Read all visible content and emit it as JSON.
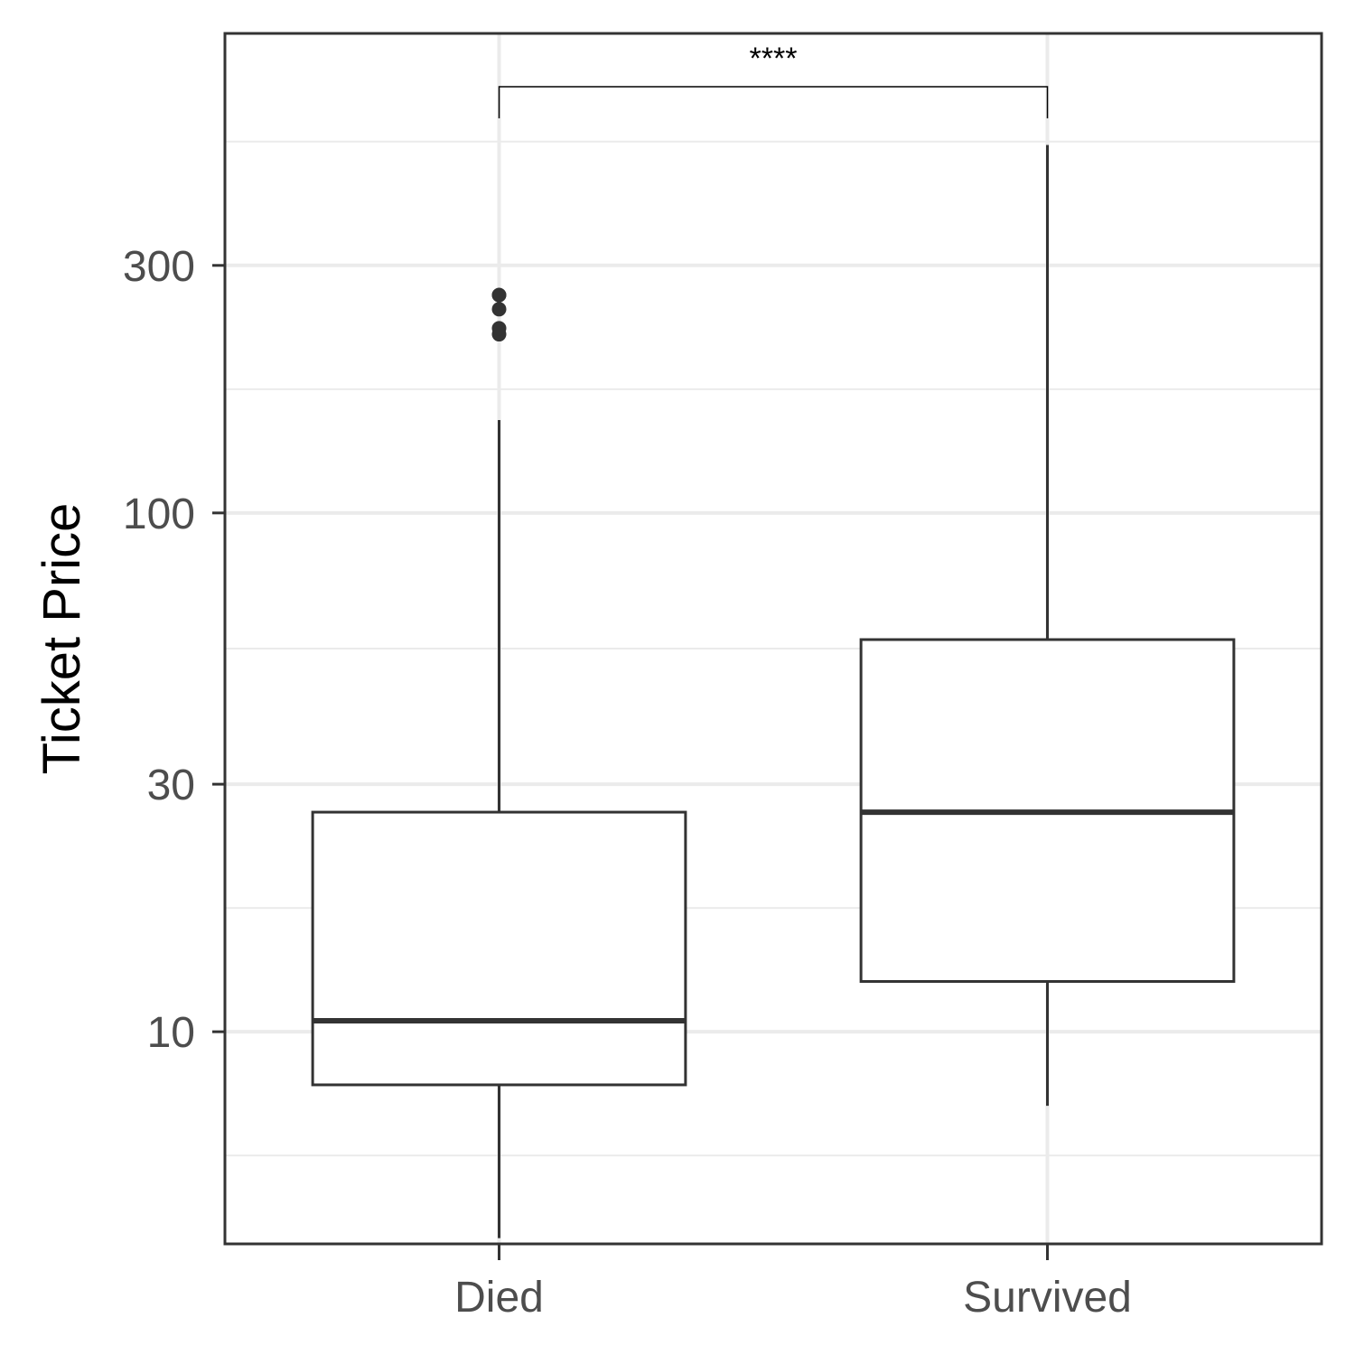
{
  "chart_data": {
    "type": "box",
    "title": "",
    "xlabel": "",
    "ylabel": "Ticket Price",
    "y_scale": "log10",
    "ylim": [
      3.9,
      840
    ],
    "y_ticks": [
      10,
      30,
      100,
      300
    ],
    "grid": true,
    "categories": [
      "Died",
      "Survived"
    ],
    "boxes": [
      {
        "category": "Died",
        "whisker_low": 4.0,
        "q1": 7.9,
        "median": 10.5,
        "q3": 26.5,
        "whisker_high": 151,
        "outliers": [
          221,
          227,
          247,
          263,
          263
        ]
      },
      {
        "category": "Survived",
        "whisker_low": 7.2,
        "q1": 12.5,
        "median": 26.5,
        "q3": 57,
        "whisker_high": 512,
        "outliers": []
      }
    ],
    "significance": {
      "from": "Died",
      "to": "Survived",
      "label": "****"
    },
    "colors": {
      "box_stroke": "#333333",
      "box_fill": "#ffffff",
      "grid": "#ebebeb",
      "panel_border": "#333333",
      "tick_text": "#4d4d4d"
    }
  }
}
